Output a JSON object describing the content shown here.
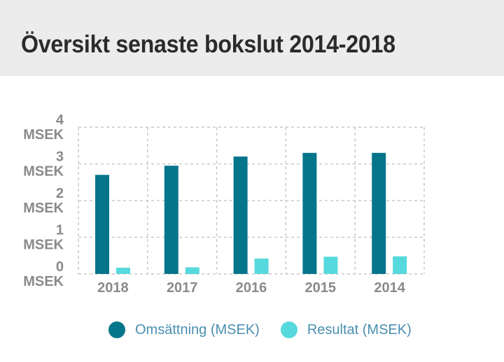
{
  "header": {
    "title": "Översikt senaste bokslut 2014-2018"
  },
  "colors": {
    "header_bg": "#ececec",
    "omsattning": "#04758a",
    "resultat": "#56d9dc",
    "axis_text": "#8a8a8a",
    "legend_text": "#4a8fb0",
    "grid": "#c9c9c9"
  },
  "chart_data": {
    "type": "bar",
    "categories": [
      "2018",
      "2017",
      "2016",
      "2015",
      "2014"
    ],
    "series": [
      {
        "name": "Omsättning (MSEK)",
        "values": [
          2.7,
          2.95,
          3.2,
          3.3,
          3.3
        ]
      },
      {
        "name": "Resultat (MSEK)",
        "values": [
          0.17,
          0.18,
          0.42,
          0.47,
          0.48
        ]
      }
    ],
    "y_ticks": [
      {
        "value": 0,
        "num": "0",
        "unit": "MSEK"
      },
      {
        "value": 1,
        "num": "1",
        "unit": "MSEK"
      },
      {
        "value": 2,
        "num": "2",
        "unit": "MSEK"
      },
      {
        "value": 3,
        "num": "3",
        "unit": "MSEK"
      },
      {
        "value": 4,
        "num": "4",
        "unit": "MSEK"
      }
    ],
    "ylim": [
      0,
      4
    ],
    "grid": true,
    "legend_position": "bottom"
  }
}
